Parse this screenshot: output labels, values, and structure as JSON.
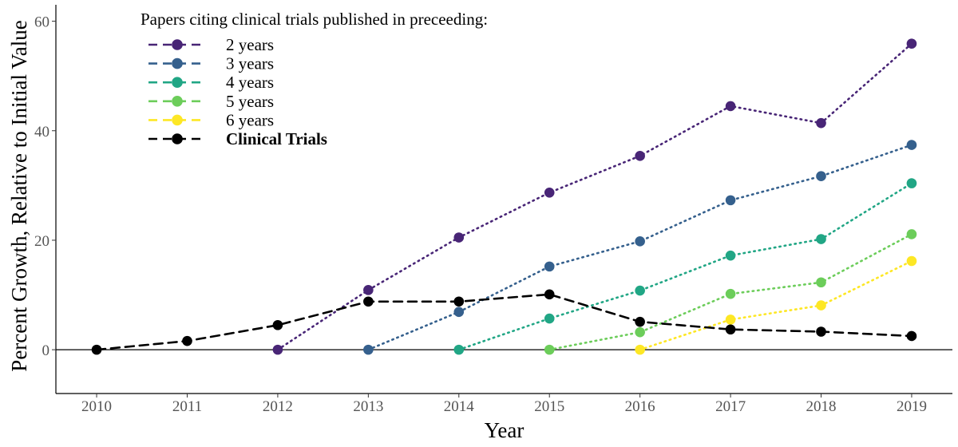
{
  "chart_data": {
    "type": "line",
    "title": "",
    "xlabel": "Year",
    "ylabel": "Percent Growth, Relative to Initial Value",
    "x": [
      2010,
      2011,
      2012,
      2013,
      2014,
      2015,
      2016,
      2017,
      2018,
      2019
    ],
    "xlim": [
      2009.55,
      2019.45
    ],
    "ylim": [
      -8,
      63
    ],
    "yticks": [
      0,
      20,
      40,
      60
    ],
    "legend_title": "Papers citing clinical trials published in preceeding:",
    "legend_position": "top-left",
    "grid": false,
    "series": [
      {
        "name": "2 years",
        "color": "#482576",
        "line_style": "dotted",
        "x": [
          2012,
          2013,
          2014,
          2015,
          2016,
          2017,
          2018,
          2019
        ],
        "values": [
          0,
          10.9,
          20.5,
          28.7,
          35.4,
          44.5,
          41.4,
          55.9
        ]
      },
      {
        "name": "3 years",
        "color": "#35608d",
        "line_style": "dotted",
        "x": [
          2013,
          2014,
          2015,
          2016,
          2017,
          2018,
          2019
        ],
        "values": [
          0,
          6.9,
          15.2,
          19.8,
          27.3,
          31.7,
          37.4
        ]
      },
      {
        "name": "4 years",
        "color": "#21a685",
        "line_style": "dotted",
        "x": [
          2014,
          2015,
          2016,
          2017,
          2018,
          2019
        ],
        "values": [
          0,
          5.7,
          10.8,
          17.2,
          20.2,
          30.4
        ]
      },
      {
        "name": "5 years",
        "color": "#6ccd5a",
        "line_style": "dotted",
        "x": [
          2015,
          2016,
          2017,
          2018,
          2019
        ],
        "values": [
          0,
          3.2,
          10.2,
          12.3,
          21.1
        ]
      },
      {
        "name": "6 years",
        "color": "#fde725",
        "line_style": "dotted",
        "x": [
          2016,
          2017,
          2018,
          2019
        ],
        "values": [
          0,
          5.5,
          8.1,
          16.2
        ]
      },
      {
        "name": "Clinical Trials",
        "color": "#000000",
        "line_style": "dashed",
        "bold_label": true,
        "x": [
          2010,
          2011,
          2012,
          2013,
          2014,
          2015,
          2016,
          2017,
          2018,
          2019
        ],
        "values": [
          0,
          1.6,
          4.5,
          8.8,
          8.8,
          10.1,
          5.1,
          3.7,
          3.3,
          2.5
        ]
      }
    ]
  }
}
